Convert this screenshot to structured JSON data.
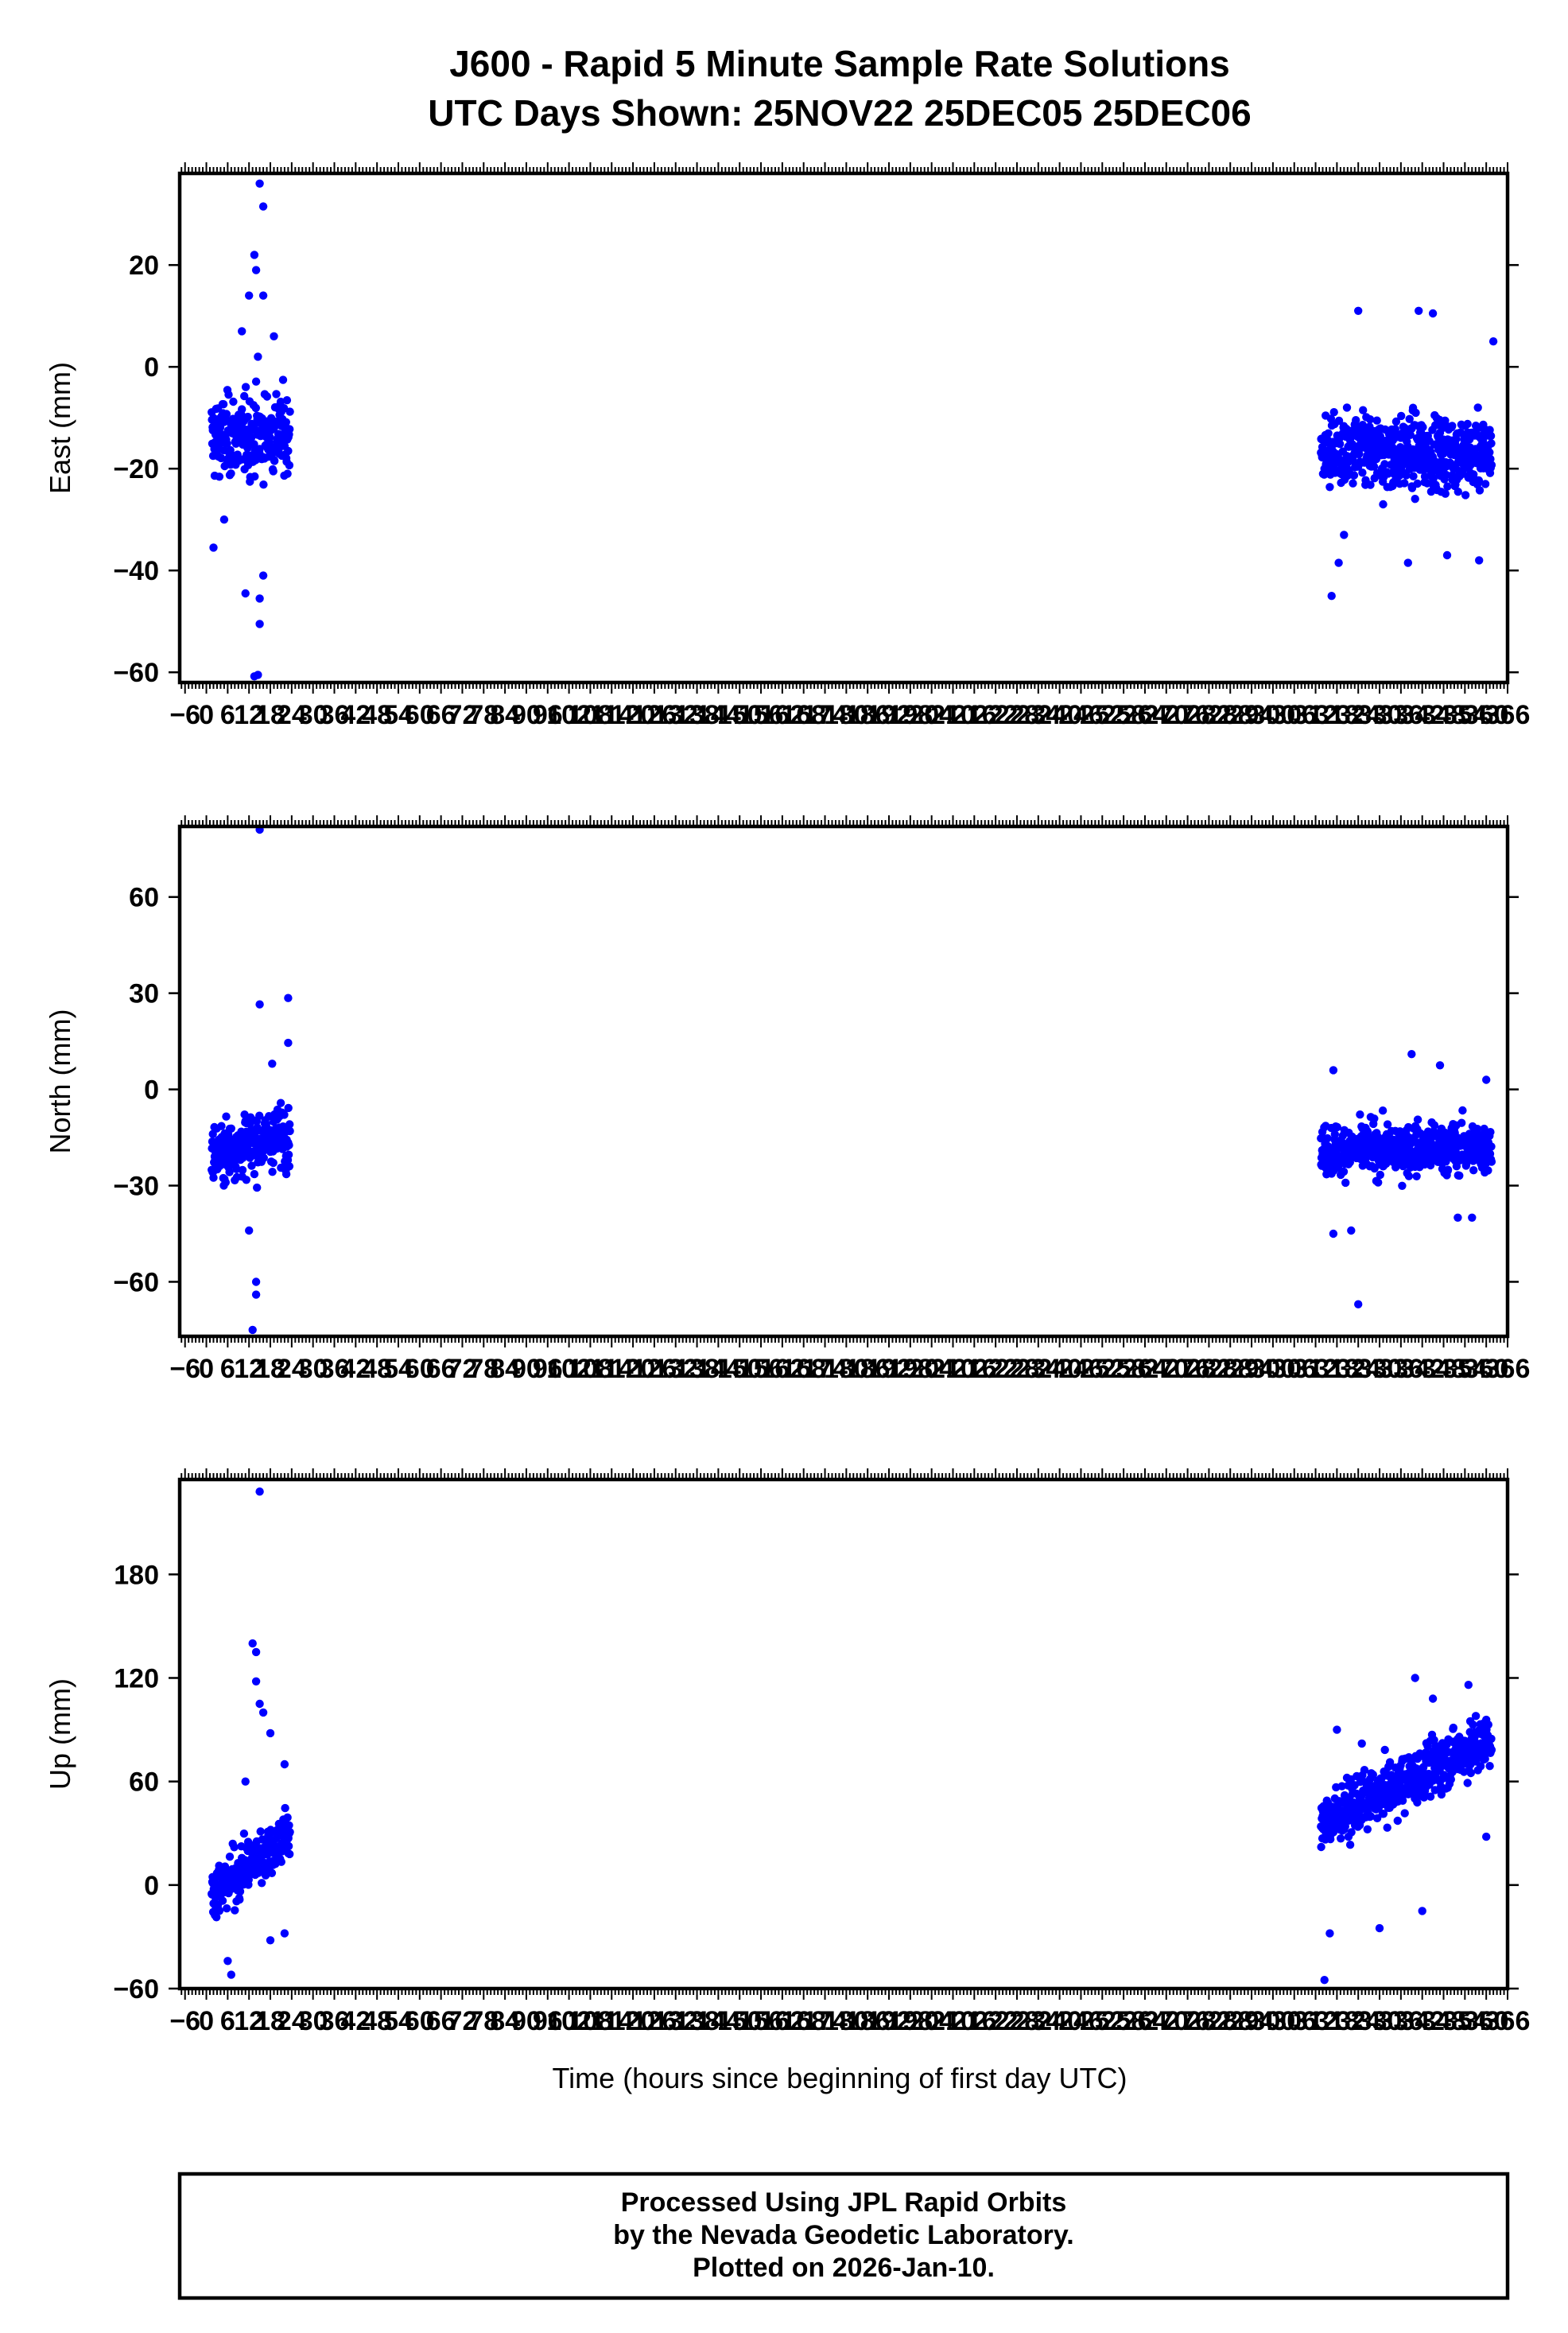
{
  "title_line1": "J600 - Rapid 5 Minute Sample Rate Solutions",
  "title_line2": "UTC Days Shown:  25NOV22 25DEC05 25DEC06",
  "x_axis_label": "Time (hours since beginning of first day UTC)",
  "footer": {
    "line1": "Processed Using JPL Rapid Orbits",
    "line2": "by the Nevada Geodetic Laboratory.",
    "line3": "Plotted on 2026-Jan-10."
  },
  "colors": {
    "points": "#0000ff",
    "frame": "#000000"
  },
  "chart_data": [
    {
      "type": "scatter",
      "ylabel": "East (mm)",
      "xlim": [
        -7.5,
        366
      ],
      "ylim": [
        -62,
        38
      ],
      "yticks": [
        20,
        0,
        -20,
        -40,
        -60
      ],
      "xtick_step": 6,
      "xtick_start": -6,
      "xtick_end": 366,
      "segments": [
        {
          "x_range": [
            1.5,
            23.5
          ],
          "base": -14,
          "base_end": -13,
          "spread": 6,
          "outliers": [
            [
              15,
              36
            ],
            [
              16,
              31.5
            ],
            [
              13.5,
              22
            ],
            [
              14,
              19
            ],
            [
              12,
              14
            ],
            [
              16,
              14
            ],
            [
              10,
              7
            ],
            [
              19,
              6
            ],
            [
              14.5,
              2
            ],
            [
              2,
              -35.5
            ],
            [
              11,
              -44.5
            ],
            [
              15,
              -45.5
            ],
            [
              15,
              -50.5
            ],
            [
              14.5,
              -60.5
            ],
            [
              13.5,
              -60.8
            ],
            [
              16,
              -41
            ],
            [
              5,
              -30
            ]
          ]
        },
        {
          "x_range": [
            313.5,
            361.5
          ],
          "base": -17,
          "base_end": -17,
          "spread": 5.5,
          "outliers": [
            [
              324,
              11
            ],
            [
              341,
              11
            ],
            [
              345,
              10.5
            ],
            [
              362,
              5
            ],
            [
              318.5,
              -38.5
            ],
            [
              316.5,
              -45
            ],
            [
              338,
              -38.5
            ],
            [
              349,
              -37
            ],
            [
              358,
              -38
            ],
            [
              331,
              -27
            ],
            [
              320,
              -33
            ]
          ]
        }
      ]
    },
    {
      "type": "scatter",
      "ylabel": "North (mm)",
      "xlim": [
        -7.5,
        366
      ],
      "ylim": [
        -77,
        82
      ],
      "yticks": [
        60,
        30,
        0,
        -30,
        -60
      ],
      "xtick_step": 6,
      "xtick_start": -6,
      "xtick_end": 366,
      "segments": [
        {
          "x_range": [
            1.5,
            23.5
          ],
          "base": -20,
          "base_end": -14,
          "spread": 7,
          "outliers": [
            [
              15,
              81
            ],
            [
              15,
              26.5
            ],
            [
              23,
              28.5
            ],
            [
              23,
              14.5
            ],
            [
              14,
              -60
            ],
            [
              14,
              -64
            ],
            [
              13,
              -75
            ],
            [
              12,
              -44
            ],
            [
              18.5,
              8
            ]
          ]
        },
        {
          "x_range": [
            313.5,
            361.5
          ],
          "base": -19,
          "base_end": -18,
          "spread": 6,
          "outliers": [
            [
              324,
              -67
            ],
            [
              317,
              -45
            ],
            [
              322,
              -44
            ],
            [
              339,
              11
            ],
            [
              347,
              7.5
            ],
            [
              317,
              6
            ],
            [
              360,
              3
            ],
            [
              352,
              -40
            ],
            [
              356,
              -40
            ]
          ]
        }
      ]
    },
    {
      "type": "scatter",
      "ylabel": "Up (mm)",
      "xlim": [
        -7.5,
        366
      ],
      "ylim": [
        -60,
        235
      ],
      "yticks": [
        180,
        120,
        60,
        0,
        -60
      ],
      "xtick_step": 6,
      "xtick_start": -6,
      "xtick_end": 366,
      "segments": [
        {
          "x_range": [
            1.5,
            23.5
          ],
          "base": -5,
          "base_end": 30,
          "spread": 12,
          "outliers": [
            [
              15,
              228
            ],
            [
              13,
              140
            ],
            [
              14,
              135
            ],
            [
              14,
              118
            ],
            [
              15,
              105
            ],
            [
              16,
              100
            ],
            [
              18,
              88
            ],
            [
              7,
              -52
            ],
            [
              6,
              -44
            ],
            [
              22,
              -28
            ],
            [
              18,
              -32
            ],
            [
              11,
              60
            ],
            [
              22,
              70
            ]
          ]
        },
        {
          "x_range": [
            313.5,
            361.5
          ],
          "base": 35,
          "base_end": 85,
          "spread": 12,
          "outliers": [
            [
              314.5,
              -55
            ],
            [
              316,
              -28
            ],
            [
              318,
              90
            ],
            [
              340,
              120
            ],
            [
              355,
              116
            ],
            [
              345,
              108
            ],
            [
              330,
              -25
            ],
            [
              342,
              -15
            ],
            [
              360,
              28
            ],
            [
              325,
              82
            ]
          ]
        }
      ]
    }
  ]
}
